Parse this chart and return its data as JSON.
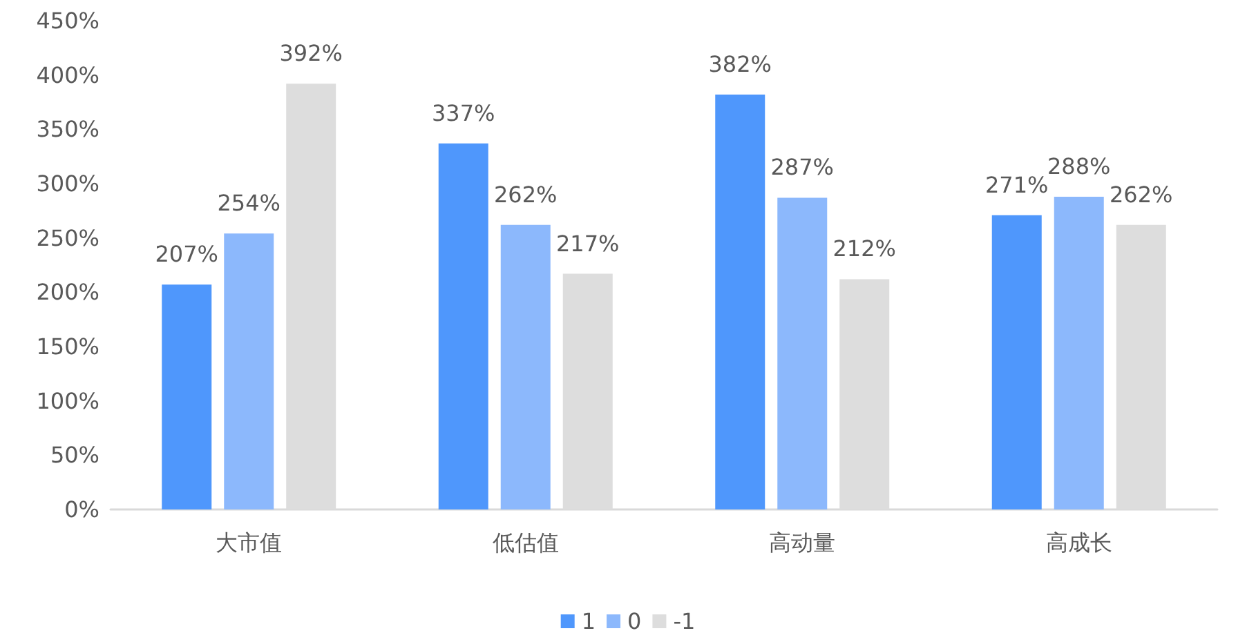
{
  "chart_data": {
    "type": "bar",
    "categories": [
      "大市值",
      "低估值",
      "高动量",
      "高成长"
    ],
    "series": [
      {
        "name": "1",
        "color": "#4f97fc",
        "values": [
          207,
          337,
          382,
          271
        ],
        "value_labels": [
          "207%",
          "337%",
          "382%",
          "271%"
        ]
      },
      {
        "name": "0",
        "color": "#8cb8fc",
        "values": [
          254,
          262,
          287,
          288
        ],
        "value_labels": [
          "254%",
          "262%",
          "287%",
          "288%"
        ]
      },
      {
        "name": "-1",
        "color": "#dddddd",
        "values": [
          392,
          217,
          212,
          262
        ],
        "value_labels": [
          "392%",
          "217%",
          "212%",
          "262%"
        ]
      }
    ],
    "ylim": [
      0,
      450
    ],
    "yticks": [
      {
        "value": 0,
        "label": "0%"
      },
      {
        "value": 50,
        "label": "50%"
      },
      {
        "value": 100,
        "label": "100%"
      },
      {
        "value": 150,
        "label": "150%"
      },
      {
        "value": 200,
        "label": "200%"
      },
      {
        "value": 250,
        "label": "250%"
      },
      {
        "value": 300,
        "label": "300%"
      },
      {
        "value": 350,
        "label": "350%"
      },
      {
        "value": 400,
        "label": "400%"
      },
      {
        "value": 450,
        "label": "450%"
      }
    ],
    "grid": false,
    "legend": "bottom"
  }
}
